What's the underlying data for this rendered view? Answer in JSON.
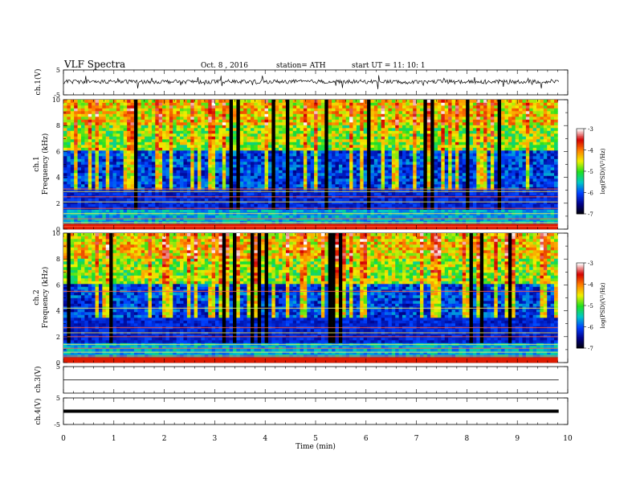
{
  "header": {
    "title": "VLF  Spectra",
    "date": "Oct. 8  , 2016",
    "station": "station= ATH",
    "start": "start  UT  =    11: 10: 1"
  },
  "colorbar": {
    "label": "log(PSD)(V²/Hz)",
    "ticks": [
      "-3",
      "-4",
      "-5",
      "-6",
      "-7"
    ],
    "stops": [
      "#ffffff",
      "#d40000",
      "#ff8000",
      "#f0f000",
      "#20e020",
      "#00c8c8",
      "#0040ff",
      "#00008a",
      "#000000"
    ]
  },
  "chart_data": [
    {
      "type": "line",
      "ylabel": "ch.1(V)",
      "ylim": [
        -5,
        5
      ],
      "yticks": [
        "5",
        "-5"
      ],
      "xlim": [
        0,
        10
      ],
      "series": [
        {
          "shape": "noisy-trace",
          "baseline": 0.3,
          "amplitude": 1.6
        }
      ]
    },
    {
      "type": "heatmap",
      "ylabel": "ch.1\nFrequency  (kHz)",
      "ylim": [
        0,
        10
      ],
      "yticks": [
        "0",
        "2",
        "4",
        "6",
        "8",
        "10"
      ],
      "xlim": [
        0,
        10
      ],
      "data_until_min": 9.8,
      "zlim": [
        -7,
        -3
      ]
    },
    {
      "type": "heatmap",
      "ylabel": "ch.2\nFrequency  (kHz)",
      "ylim": [
        0,
        10
      ],
      "yticks": [
        "0",
        "2",
        "4",
        "6",
        "8",
        "10"
      ],
      "xlim": [
        0,
        10
      ],
      "data_until_min": 9.8,
      "zlim": [
        -7,
        -3
      ]
    },
    {
      "type": "line",
      "ylabel": "ch.3(V)",
      "ylim": [
        -5,
        5
      ],
      "yticks": [
        "5"
      ],
      "xlim": [
        0,
        10
      ],
      "series": [
        {
          "shape": "flat",
          "baseline": 0.0
        }
      ]
    },
    {
      "type": "line",
      "ylabel": "ch.4(V)",
      "ylim": [
        -5,
        5
      ],
      "yticks": [
        "5",
        "-5"
      ],
      "xlim": [
        0,
        10
      ],
      "series": [
        {
          "shape": "thick-flat",
          "baseline": 0.0
        }
      ]
    }
  ],
  "xaxis": {
    "label": "Time  (min)",
    "ticks": [
      "0",
      "1",
      "2",
      "3",
      "4",
      "5",
      "6",
      "7",
      "8",
      "9",
      "10"
    ],
    "range": [
      0,
      10
    ]
  }
}
